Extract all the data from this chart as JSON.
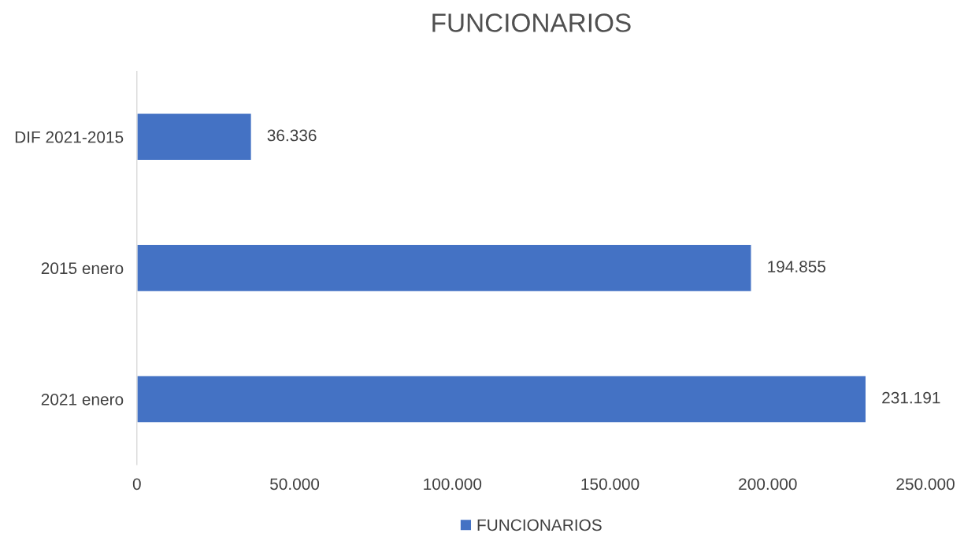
{
  "chart_data": {
    "type": "bar",
    "title": "FUNCIONARIOS",
    "orientation": "horizontal",
    "categories": [
      "DIF 2021-2015",
      "2015 enero",
      "2021 enero"
    ],
    "series": [
      {
        "name": "FUNCIONARIOS",
        "color": "#4472c4",
        "values": [
          36336,
          194855,
          231191
        ],
        "value_labels": [
          "36.336",
          "194.855",
          "231.191"
        ]
      }
    ],
    "xlim": [
      0,
      250000
    ],
    "xticks": [
      0,
      {
        "value": 50000,
        "label": "50.000"
      },
      {
        "value": 100000,
        "label": "100.000"
      },
      {
        "value": 150000,
        "label": "150.000"
      },
      {
        "value": 200000,
        "label": "200.000"
      },
      {
        "value": 250000,
        "label": "250.000"
      }
    ],
    "grid": false,
    "legend": "bottom"
  }
}
